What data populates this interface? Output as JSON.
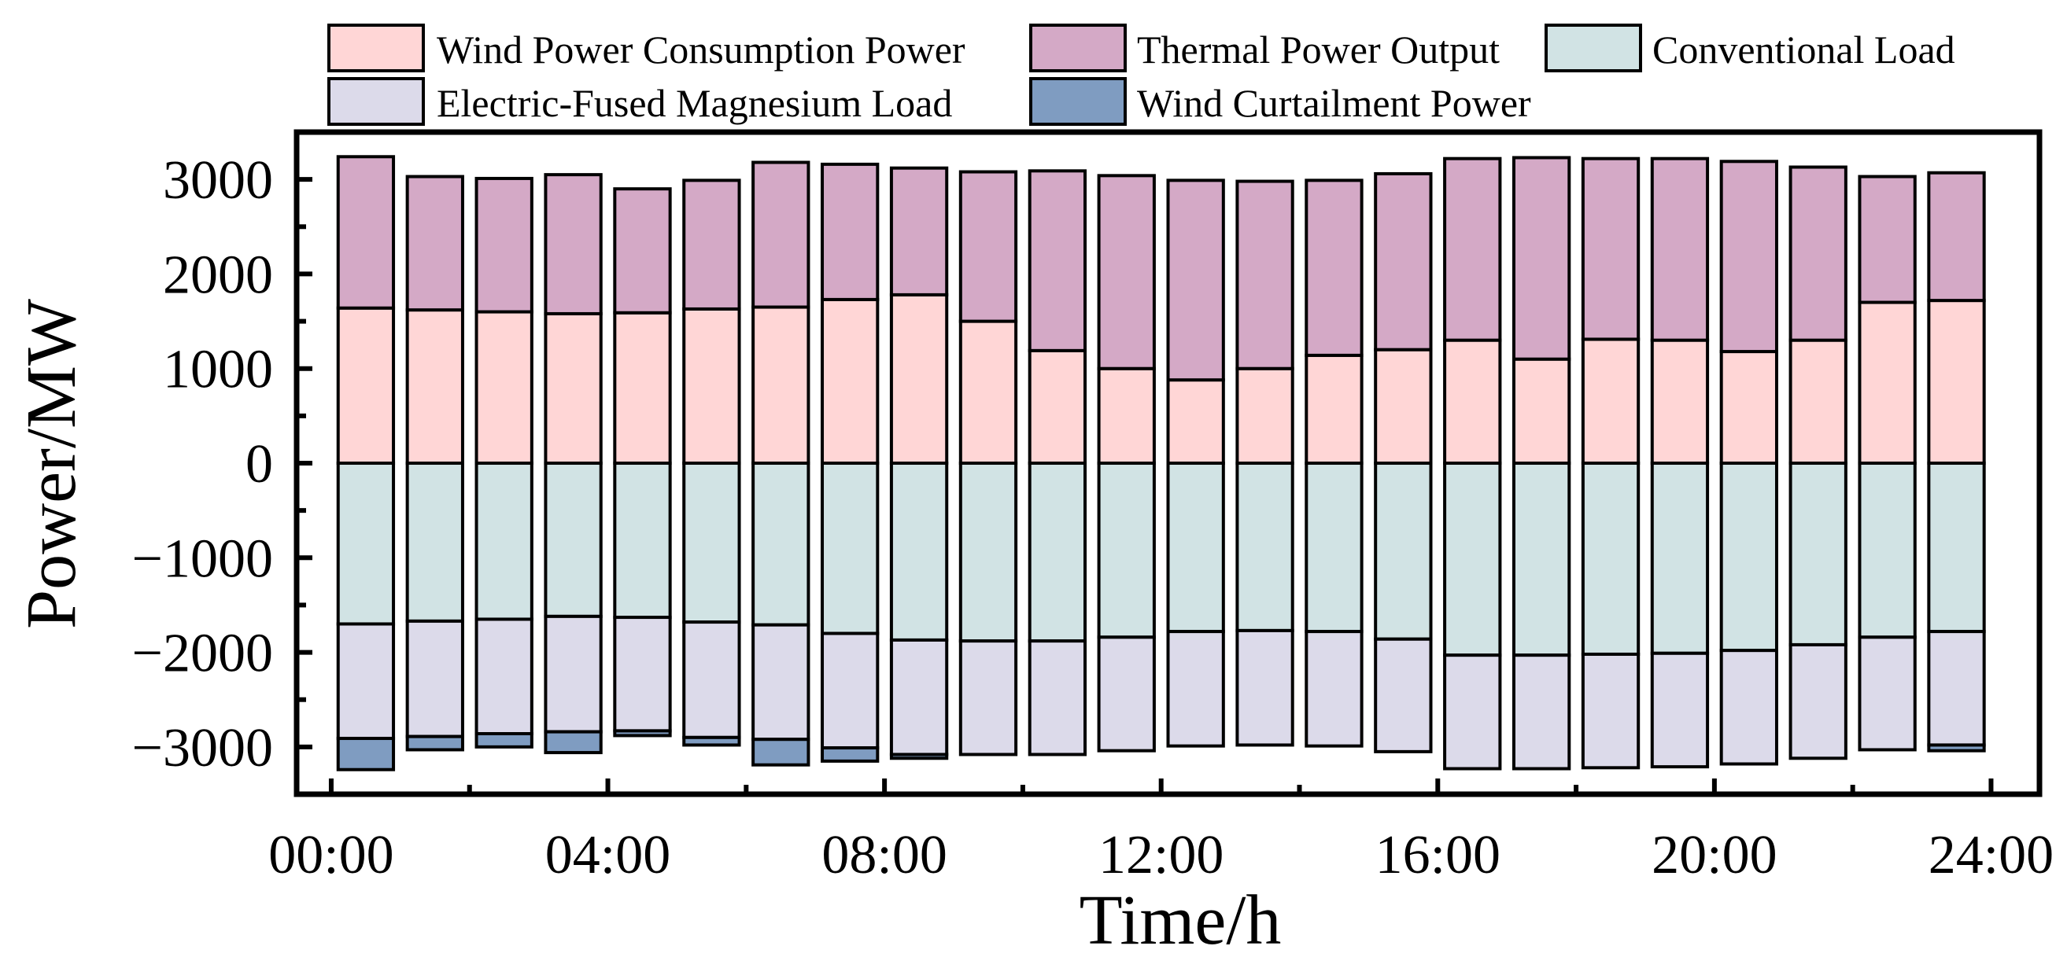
{
  "chart_data": {
    "type": "bar",
    "stacked": true,
    "diverging": true,
    "xlabel": "Time/h",
    "ylabel": "Power/MW",
    "ylim": [
      -3500,
      3500
    ],
    "yticks": [
      3000,
      2000,
      1000,
      0,
      -1000,
      -2000,
      -3000
    ],
    "ytick_labels": [
      "3000",
      "2000",
      "1000",
      "0",
      "−1000",
      "−2000",
      "−3000"
    ],
    "xticks": [
      0,
      4,
      8,
      12,
      16,
      20,
      24
    ],
    "xtick_labels": [
      "00:00",
      "04:00",
      "08:00",
      "12:00",
      "16:00",
      "20:00",
      "24:00"
    ],
    "xlim": [
      -0.5,
      24.7
    ],
    "hours": [
      1,
      2,
      3,
      4,
      5,
      6,
      7,
      8,
      9,
      10,
      11,
      12,
      13,
      14,
      15,
      16,
      17,
      18,
      19,
      20,
      21,
      22,
      23,
      24
    ],
    "series": [
      {
        "name": "Wind Power Consumption Power",
        "color": "#FFD6D6",
        "side": "positive",
        "values": [
          1640,
          1620,
          1600,
          1580,
          1590,
          1630,
          1650,
          1730,
          1780,
          1500,
          1190,
          1000,
          880,
          1000,
          1140,
          1200,
          1300,
          1100,
          1310,
          1300,
          1180,
          1300,
          1700,
          1720
        ]
      },
      {
        "name": "Thermal Power Output",
        "color": "#D4A9C6",
        "side": "positive",
        "values": [
          1600,
          1410,
          1410,
          1470,
          1310,
          1360,
          1530,
          1430,
          1340,
          1580,
          1900,
          2040,
          2110,
          1980,
          1850,
          1860,
          1920,
          2130,
          1910,
          1920,
          2010,
          1830,
          1330,
          1350
        ]
      },
      {
        "name": "Conventional Load",
        "color": "#D1E3E4",
        "side": "negative",
        "values": [
          1700,
          1670,
          1650,
          1620,
          1630,
          1680,
          1710,
          1800,
          1870,
          1880,
          1880,
          1840,
          1780,
          1770,
          1780,
          1860,
          2030,
          2030,
          2020,
          2010,
          1980,
          1920,
          1840,
          1780
        ]
      },
      {
        "name": "Electric-Fused Magnesium Load",
        "color": "#DCDAEA",
        "side": "negative",
        "values": [
          1210,
          1220,
          1210,
          1220,
          1200,
          1220,
          1210,
          1210,
          1210,
          1200,
          1200,
          1200,
          1210,
          1210,
          1210,
          1190,
          1200,
          1200,
          1200,
          1200,
          1200,
          1200,
          1190,
          1200
        ]
      },
      {
        "name": "Wind Curtailment Power",
        "color": "#7F9CC1",
        "side": "negative",
        "values": [
          330,
          140,
          140,
          220,
          50,
          80,
          270,
          140,
          40,
          0,
          0,
          0,
          0,
          0,
          0,
          0,
          0,
          0,
          0,
          0,
          0,
          0,
          0,
          60
        ]
      }
    ],
    "legend": {
      "position": "top",
      "entries": [
        "Wind Power Consumption Power",
        "Thermal Power Output",
        "Conventional Load",
        "Electric-Fused Magnesium Load",
        "Wind Curtailment Power"
      ]
    }
  }
}
